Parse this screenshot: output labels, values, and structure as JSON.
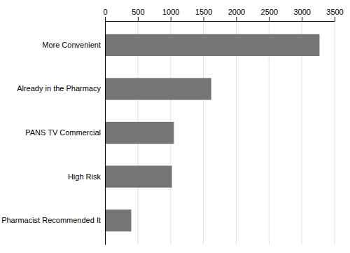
{
  "chart_data": {
    "type": "bar",
    "orientation": "horizontal",
    "categories": [
      "Pharmacist Recommended It",
      "High Risk",
      "PANS TV Commercial",
      "Already in the Pharmacy",
      "More Convenient"
    ],
    "values": [
      400,
      1020,
      1050,
      1620,
      3270
    ],
    "color": "#757575",
    "xlim": [
      0,
      3500
    ],
    "xticks": [
      0,
      500,
      1000,
      1500,
      2000,
      2500,
      3000,
      3500
    ],
    "grid": true
  }
}
